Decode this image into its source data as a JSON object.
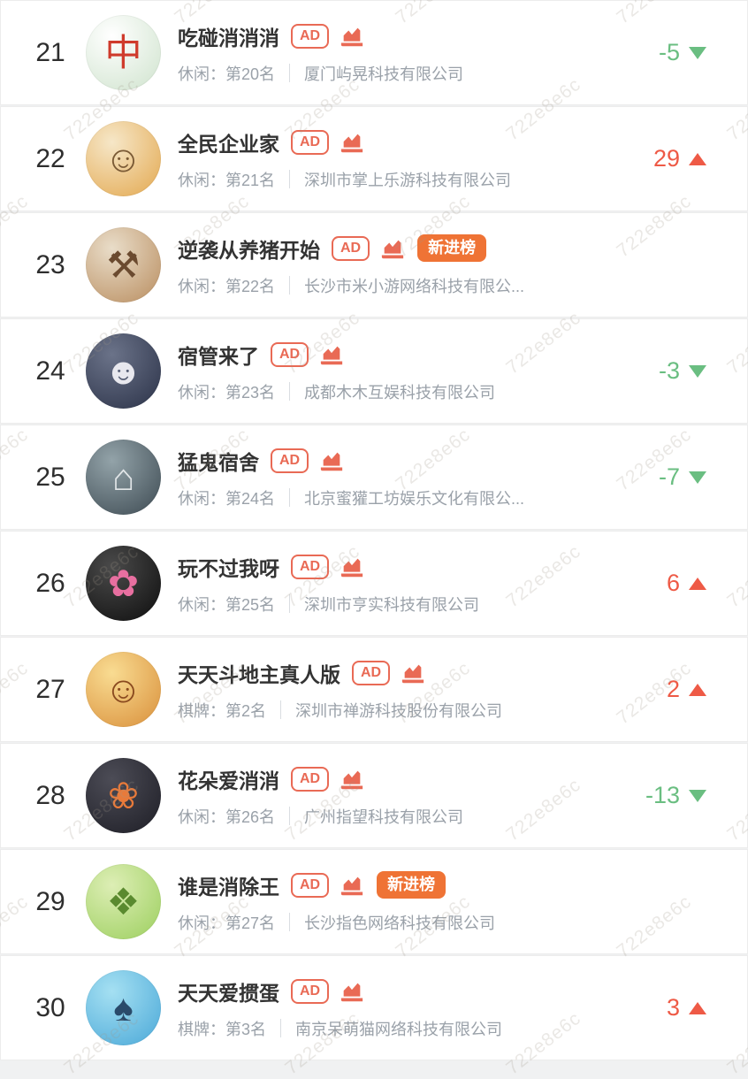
{
  "page": {
    "watermark_text": "722e8e6c",
    "background": "#f0f1f2"
  },
  "badges": {
    "ad_label": "AD",
    "new_label": "新进榜"
  },
  "colors": {
    "accent_red": "#e96a55",
    "change_up_red": "#ee5a46",
    "change_down_green": "#6abe81",
    "new_badge_orange": "#ef7335",
    "title_text": "#333333",
    "subtitle_text": "#9aa1a9"
  },
  "icons": {
    "trend_chart_icon": "area-chart-icon",
    "up_triangle": "triangle-up-icon",
    "down_triangle": "triangle-down-icon"
  },
  "rows": [
    {
      "rank": "21",
      "title": "吃碰消消消",
      "ad": true,
      "chart": true,
      "new_badge": false,
      "category": "休闲：第20名",
      "company": "厦门屿晃科技有限公司",
      "change": {
        "value": "-5",
        "direction": "down"
      },
      "icon": {
        "glyph": "中",
        "bg": "#ffffff",
        "bg2": "#cfe3cd",
        "fg": "#cf3b2c"
      }
    },
    {
      "rank": "22",
      "title": "全民企业家",
      "ad": true,
      "chart": true,
      "new_badge": false,
      "category": "休闲：第21名",
      "company": "深圳市掌上乐游科技有限公司",
      "change": {
        "value": "29",
        "direction": "up"
      },
      "icon": {
        "glyph": "☺",
        "bg": "#f6e7c8",
        "bg2": "#e3a84f",
        "fg": "#7a5a35"
      }
    },
    {
      "rank": "23",
      "title": "逆袭从养猪开始",
      "ad": true,
      "chart": true,
      "new_badge": true,
      "category": "休闲：第22名",
      "company": "长沙市米小游网络科技有限公...",
      "change": null,
      "icon": {
        "glyph": "⚒",
        "bg": "#e9ddc9",
        "bg2": "#b98d5f",
        "fg": "#6b4a2f"
      }
    },
    {
      "rank": "24",
      "title": "宿管来了",
      "ad": true,
      "chart": true,
      "new_badge": false,
      "category": "休闲：第23名",
      "company": "成都木木互娱科技有限公司",
      "change": {
        "value": "-3",
        "direction": "down"
      },
      "icon": {
        "glyph": "☻",
        "bg": "#6b7389",
        "bg2": "#2b3248",
        "fg": "#e8e8ee"
      }
    },
    {
      "rank": "25",
      "title": "猛鬼宿舍",
      "ad": true,
      "chart": true,
      "new_badge": false,
      "category": "休闲：第24名",
      "company": "北京蜜獾工坊娱乐文化有限公...",
      "change": {
        "value": "-7",
        "direction": "down"
      },
      "icon": {
        "glyph": "⌂",
        "bg": "#93a3a9",
        "bg2": "#3d4a52",
        "fg": "#e2e6e8"
      }
    },
    {
      "rank": "26",
      "title": "玩不过我呀",
      "ad": true,
      "chart": true,
      "new_badge": false,
      "category": "休闲：第25名",
      "company": "深圳市亨实科技有限公司",
      "change": {
        "value": "6",
        "direction": "up"
      },
      "icon": {
        "glyph": "✿",
        "bg": "#4a4a4a",
        "bg2": "#0e0e0e",
        "fg": "#e86fa0"
      }
    },
    {
      "rank": "27",
      "title": "天天斗地主真人版",
      "ad": true,
      "chart": true,
      "new_badge": false,
      "category": "棋牌：第2名",
      "company": "深圳市禅游科技股份有限公司",
      "change": {
        "value": "2",
        "direction": "up"
      },
      "icon": {
        "glyph": "☺",
        "bg": "#f9dc92",
        "bg2": "#d98f3a",
        "fg": "#8a4a1f"
      }
    },
    {
      "rank": "28",
      "title": "花朵爱消消",
      "ad": true,
      "chart": true,
      "new_badge": false,
      "category": "休闲：第26名",
      "company": "广州指望科技有限公司",
      "change": {
        "value": "-13",
        "direction": "down"
      },
      "icon": {
        "glyph": "❀",
        "bg": "#4c4c56",
        "bg2": "#1e1e26",
        "fg": "#e87a3a"
      }
    },
    {
      "rank": "29",
      "title": "谁是消除王",
      "ad": true,
      "chart": true,
      "new_badge": true,
      "category": "休闲：第27名",
      "company": "长沙指色网络科技有限公司",
      "change": null,
      "icon": {
        "glyph": "❖",
        "bg": "#ddeeb5",
        "bg2": "#9ccf5e",
        "fg": "#5a8a2f"
      }
    },
    {
      "rank": "30",
      "title": "天天爱掼蛋",
      "ad": true,
      "chart": true,
      "new_badge": false,
      "category": "棋牌：第3名",
      "company": "南京呆萌猫网络科技有限公司",
      "change": {
        "value": "3",
        "direction": "up"
      },
      "icon": {
        "glyph": "♠",
        "bg": "#a5e0f2",
        "bg2": "#4aa8d8",
        "fg": "#2a4a6a"
      }
    }
  ]
}
